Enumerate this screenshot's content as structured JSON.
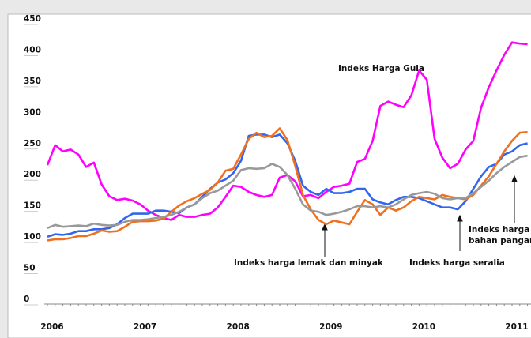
{
  "chart_data": {
    "type": "line",
    "categories": [
      "2006",
      null,
      null,
      null,
      null,
      null,
      null,
      null,
      null,
      null,
      null,
      null,
      "2007",
      null,
      null,
      null,
      null,
      null,
      null,
      null,
      null,
      null,
      null,
      null,
      "2008",
      null,
      null,
      null,
      null,
      null,
      null,
      null,
      null,
      null,
      null,
      null,
      "2009",
      null,
      null,
      null,
      null,
      null,
      null,
      null,
      null,
      null,
      null,
      null,
      "2010",
      null,
      null,
      null,
      null,
      null,
      null,
      null,
      null,
      null,
      null,
      null,
      "2011",
      null,
      null
    ],
    "series": [
      {
        "name": "Indeks Harga Gula",
        "color": "#ff00ff",
        "values": [
          223,
          255,
          245,
          248,
          240,
          220,
          227,
          192,
          173,
          167,
          169,
          166,
          160,
          150,
          143,
          138,
          135,
          143,
          140,
          140,
          143,
          145,
          155,
          172,
          190,
          188,
          180,
          175,
          172,
          175,
          203,
          207,
          197,
          173,
          175,
          170,
          180,
          188,
          190,
          193,
          228,
          233,
          262,
          318,
          325,
          320,
          316,
          335,
          375,
          360,
          265,
          235,
          218,
          225,
          248,
          262,
          315,
          348,
          375,
          400,
          420,
          418,
          417
        ]
      },
      {
        "name": "Indeks harga seralia",
        "color": "#3366ee",
        "values": [
          108,
          112,
          111,
          113,
          117,
          117,
          120,
          120,
          122,
          128,
          138,
          145,
          145,
          145,
          150,
          150,
          148,
          146,
          155,
          160,
          172,
          185,
          195,
          200,
          210,
          230,
          270,
          272,
          272,
          268,
          272,
          258,
          230,
          190,
          180,
          175,
          185,
          178,
          178,
          180,
          185,
          185,
          168,
          163,
          160,
          167,
          172,
          172,
          170,
          165,
          160,
          155,
          155,
          152,
          165,
          185,
          205,
          220,
          225,
          240,
          245,
          255,
          258
        ]
      },
      {
        "name": "Indeks harga lemak dan minyak",
        "color": "#f07020",
        "values": [
          102,
          104,
          104,
          106,
          109,
          109,
          113,
          118,
          116,
          117,
          124,
          132,
          133,
          133,
          134,
          137,
          148,
          158,
          165,
          170,
          177,
          183,
          195,
          214,
          217,
          240,
          265,
          275,
          268,
          270,
          282,
          263,
          222,
          175,
          152,
          135,
          128,
          134,
          131,
          128,
          148,
          167,
          160,
          143,
          155,
          150,
          155,
          165,
          172,
          170,
          168,
          175,
          172,
          170,
          168,
          175,
          190,
          205,
          225,
          245,
          262,
          275,
          276
        ]
      },
      {
        "name": "Indeks harga bahan pangan",
        "color": "#999999",
        "values": [
          122,
          127,
          124,
          125,
          126,
          125,
          129,
          127,
          126,
          127,
          132,
          135,
          135,
          136,
          138,
          140,
          143,
          148,
          155,
          160,
          170,
          178,
          182,
          190,
          198,
          215,
          218,
          217,
          218,
          225,
          220,
          207,
          185,
          160,
          150,
          148,
          143,
          145,
          148,
          152,
          157,
          157,
          155,
          157,
          155,
          160,
          168,
          175,
          178,
          180,
          177,
          170,
          168,
          170,
          170,
          178,
          188,
          198,
          210,
          220,
          228,
          236,
          238
        ]
      }
    ],
    "annotations": [
      "Indeks Harga Gula",
      "Indeks harga lemak dan minyak",
      "Indeks harga seralia",
      [
        "Indeks  harga",
        "bahan pangan"
      ]
    ],
    "ylim": [
      0,
      450
    ],
    "yticks": [
      0,
      50,
      100,
      150,
      200,
      250,
      300,
      350,
      400,
      450
    ],
    "grid": false
  }
}
